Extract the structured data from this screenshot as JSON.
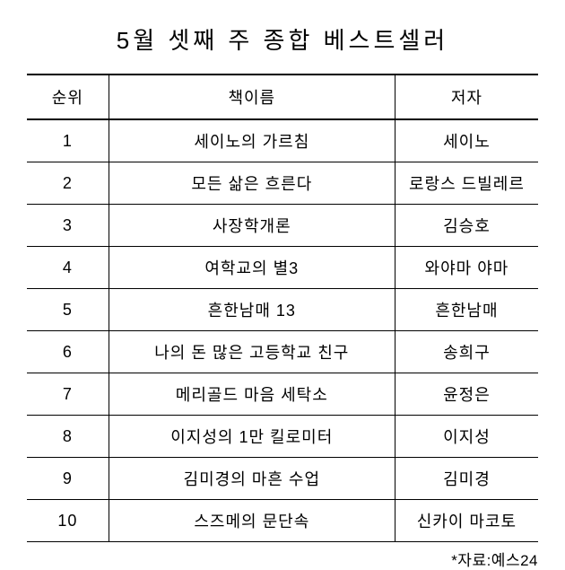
{
  "title": "5월 셋째 주 종합 베스트셀러",
  "columns": {
    "rank": "순위",
    "book": "책이름",
    "author": "저자"
  },
  "rows": [
    {
      "rank": "1",
      "book": "세이노의 가르침",
      "author": "세이노"
    },
    {
      "rank": "2",
      "book": "모든 삶은 흐른다",
      "author": "로랑스 드빌레르"
    },
    {
      "rank": "3",
      "book": "사장학개론",
      "author": "김승호"
    },
    {
      "rank": "4",
      "book": "여학교의 별3",
      "author": "와야마 야마"
    },
    {
      "rank": "5",
      "book": "흔한남매 13",
      "author": "흔한남매"
    },
    {
      "rank": "6",
      "book": "나의 돈 많은 고등학교 친구",
      "author": "송희구"
    },
    {
      "rank": "7",
      "book": "메리골드 마음 세탁소",
      "author": "윤정은"
    },
    {
      "rank": "8",
      "book": "이지성의 1만 킬로미터",
      "author": "이지성"
    },
    {
      "rank": "9",
      "book": "김미경의 마흔 수업",
      "author": "김미경"
    },
    {
      "rank": "10",
      "book": "스즈메의 문단속",
      "author": "신카이 마코토"
    }
  ],
  "source": "*자료:예스24",
  "style": {
    "background_color": "#ffffff",
    "text_color": "#000000",
    "border_thick": 2,
    "border_thin": 1,
    "title_fontsize": 26,
    "cell_fontsize": 18,
    "source_fontsize": 17,
    "col_widths_pct": [
      16,
      56,
      28
    ]
  }
}
